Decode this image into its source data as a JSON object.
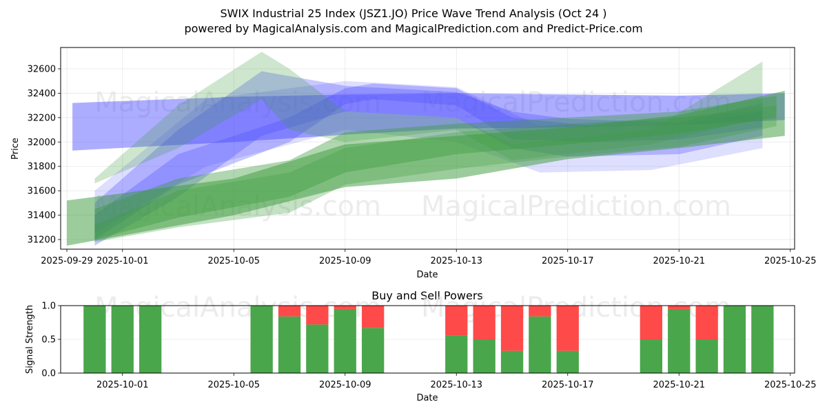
{
  "header": {
    "title": "SWIX Industrial 25 Index (JSZ1.JO) Price Wave Trend Analysis (Oct 24 )",
    "subtitle": "powered by MagicalAnalysis.com and MagicalPrediction.com and Predict-Price.com"
  },
  "watermarks": {
    "left": "MagicalAnalysis.com",
    "right": "MagicalPrediction.com"
  },
  "colors": {
    "buy": "#4aa64a",
    "sell": "#ff4a4a",
    "blue_band": "#4a4aff",
    "green_band": "#3a9a3a"
  },
  "chart_data": [
    {
      "type": "area",
      "title": "",
      "xlabel": "Date",
      "ylabel": "Price",
      "x_ticks": [
        "2025-09-29",
        "2025-10-01",
        "2025-10-05",
        "2025-10-09",
        "2025-10-13",
        "2025-10-17",
        "2025-10-21",
        "2025-10-25"
      ],
      "y_ticks": [
        31200,
        31400,
        31600,
        31800,
        32000,
        32200,
        32400,
        32600
      ],
      "xlim": [
        "2025-09-28.6",
        "2025-10-25.2"
      ],
      "ylim": [
        31120,
        32780
      ],
      "grid": true,
      "bands": [
        {
          "color": "blue",
          "opacity": 0.45,
          "x": [
            "2025-09-29.2",
            "2025-10-05",
            "2025-10-09",
            "2025-10-13",
            "2025-10-17",
            "2025-10-21",
            "2025-10-24.8"
          ],
          "upper": [
            32320,
            32370,
            32390,
            32400,
            32390,
            32380,
            32400
          ],
          "lower": [
            31930,
            32000,
            32060,
            32110,
            32120,
            32140,
            32180
          ]
        },
        {
          "color": "blue",
          "opacity": 0.3,
          "x": [
            "2025-09-30",
            "2025-10-03",
            "2025-10-06",
            "2025-10-09",
            "2025-10-13",
            "2025-10-15",
            "2025-10-17",
            "2025-10-21",
            "2025-10-24"
          ],
          "upper": [
            31500,
            32100,
            32580,
            32460,
            32410,
            32250,
            32190,
            32160,
            32320
          ],
          "lower": [
            31150,
            31550,
            32050,
            32250,
            32200,
            31950,
            31880,
            31900,
            32050
          ]
        },
        {
          "color": "blue",
          "opacity": 0.3,
          "x": [
            "2025-09-30",
            "2025-10-03",
            "2025-10-07",
            "2025-10-09",
            "2025-10-10",
            "2025-10-13",
            "2025-10-15",
            "2025-10-18",
            "2025-10-21",
            "2025-10-24"
          ],
          "upper": [
            31400,
            31900,
            32200,
            32440,
            32480,
            32440,
            32200,
            32130,
            32140,
            32250
          ],
          "lower": [
            31200,
            31650,
            32000,
            32310,
            32350,
            32300,
            32020,
            32000,
            32020,
            32120
          ]
        },
        {
          "color": "blue",
          "opacity": 0.18,
          "x": [
            "2025-09-30",
            "2025-10-04",
            "2025-10-09",
            "2025-10-13",
            "2025-10-16",
            "2025-10-20",
            "2025-10-24"
          ],
          "upper": [
            31600,
            32350,
            32500,
            32450,
            32130,
            32180,
            32260
          ],
          "lower": [
            31250,
            31800,
            32100,
            32000,
            31750,
            31770,
            31950
          ]
        },
        {
          "color": "green",
          "opacity": 0.25,
          "x": [
            "2025-09-30",
            "2025-10-03",
            "2025-10-06",
            "2025-10-07",
            "2025-10-09",
            "2025-10-13",
            "2025-10-15",
            "2025-10-20",
            "2025-10-24"
          ],
          "upper": [
            31700,
            32300,
            32740,
            32600,
            32250,
            32200,
            31980,
            32100,
            32660
          ],
          "lower": [
            31660,
            31950,
            32350,
            32100,
            32000,
            32100,
            31850,
            31980,
            32200
          ]
        },
        {
          "color": "green",
          "opacity": 0.5,
          "x": [
            "2025-09-29",
            "2025-10-05",
            "2025-10-09",
            "2025-10-13",
            "2025-10-17",
            "2025-10-21",
            "2025-10-24.8"
          ],
          "upper": [
            31520,
            31700,
            31980,
            32050,
            32120,
            32220,
            32420
          ],
          "lower": [
            31150,
            31400,
            31630,
            31700,
            31860,
            31950,
            32050
          ]
        },
        {
          "color": "green",
          "opacity": 0.4,
          "x": [
            "2025-09-30",
            "2025-10-03",
            "2025-10-07",
            "2025-10-09",
            "2025-10-13",
            "2025-10-17",
            "2025-10-21",
            "2025-10-24.5"
          ],
          "upper": [
            31450,
            31700,
            31850,
            32080,
            32150,
            32200,
            32250,
            32380
          ],
          "lower": [
            31200,
            31380,
            31550,
            31750,
            31900,
            31980,
            32070,
            32200
          ]
        },
        {
          "color": "green",
          "opacity": 0.3,
          "x": [
            "2025-09-30",
            "2025-10-03",
            "2025-10-07",
            "2025-10-09",
            "2025-10-13",
            "2025-10-17",
            "2025-10-21",
            "2025-10-24.5"
          ],
          "upper": [
            31320,
            31600,
            31750,
            31950,
            32080,
            32150,
            32200,
            32300
          ],
          "lower": [
            31180,
            31300,
            31420,
            31650,
            31780,
            31880,
            31960,
            32130
          ]
        }
      ]
    },
    {
      "type": "bar",
      "title": "Buy and Sell Powers",
      "xlabel": "Date",
      "ylabel": "Signal Strength",
      "x_ticks": [
        "2025-10-01",
        "2025-10-05",
        "2025-10-09",
        "2025-10-13",
        "2025-10-17",
        "2025-10-21",
        "2025-10-25"
      ],
      "y_ticks": [
        "0.0",
        "0.5",
        "1.0"
      ],
      "ylim": [
        0,
        1
      ],
      "grid": true,
      "categories": [
        "2025-09-30",
        "2025-10-01",
        "2025-10-02",
        "2025-10-06",
        "2025-10-07",
        "2025-10-08",
        "2025-10-09",
        "2025-10-10",
        "2025-10-13",
        "2025-10-14",
        "2025-10-15",
        "2025-10-16",
        "2025-10-17",
        "2025-10-20",
        "2025-10-21",
        "2025-10-22",
        "2025-10-23",
        "2025-10-24"
      ],
      "series": [
        {
          "name": "Buy",
          "values": [
            1.0,
            1.0,
            1.0,
            1.0,
            0.84,
            0.72,
            0.95,
            0.67,
            0.56,
            0.5,
            0.33,
            0.84,
            0.33,
            0.5,
            0.95,
            0.5,
            1.0,
            1.0
          ]
        },
        {
          "name": "Sell",
          "values": [
            0.0,
            0.0,
            0.0,
            0.0,
            0.16,
            0.28,
            0.05,
            0.33,
            0.44,
            0.5,
            0.67,
            0.16,
            0.67,
            0.5,
            0.05,
            0.5,
            0.0,
            0.0
          ]
        }
      ]
    }
  ]
}
